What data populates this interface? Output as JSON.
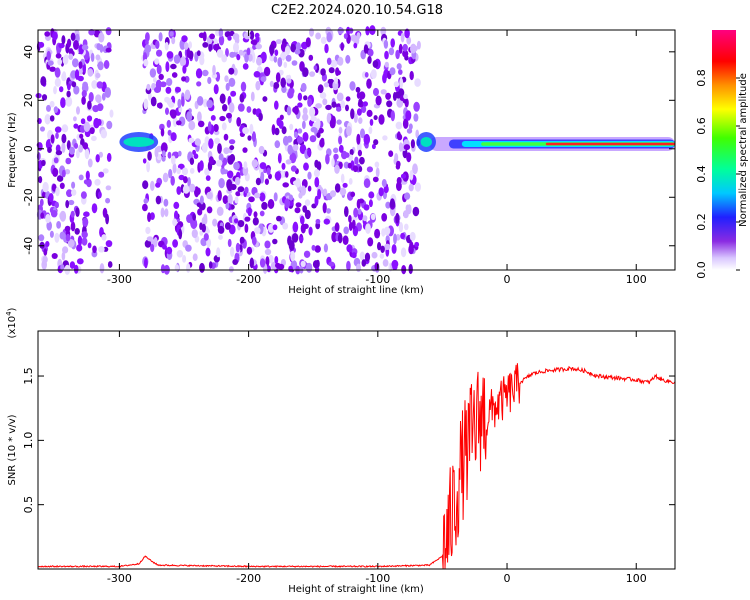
{
  "chart_data": [
    {
      "type": "heatmap",
      "title": "C2E2.2024.020.10.54.G18",
      "xlabel": "Height of straight line (km)",
      "ylabel": "Frequency (Hz)",
      "xlim": [
        -363,
        130
      ],
      "ylim": [
        -50,
        49
      ],
      "x_ticks": [
        -300,
        -200,
        -100,
        0,
        100
      ],
      "y_ticks": [
        -40,
        -20,
        0,
        20,
        40
      ],
      "colorbar": {
        "label": "Normalized spectral amplitude",
        "range": [
          0,
          1
        ],
        "ticks": [
          "0.0",
          "0.2",
          "0.4",
          "0.6",
          "0.8"
        ]
      },
      "features": {
        "noise_region_x": [
          -363,
          -68
        ],
        "gap_x": [
          -306,
          -281
        ],
        "signal_frequency_hz": 2,
        "strong_signal_x": [
          -70,
          130
        ]
      }
    },
    {
      "type": "line",
      "xlabel": "Height of straight line (km)",
      "ylabel": "SNR (10 * v/v)",
      "y_multiplier": "(x10",
      "y_multiplier_exp": "4",
      "y_multiplier_close": ")",
      "xlim": [
        -363,
        130
      ],
      "ylim": [
        0,
        1.85
      ],
      "x_ticks": [
        -300,
        -200,
        -100,
        0,
        100
      ],
      "y_ticks": [
        "0.5",
        "1.0",
        "1.5"
      ],
      "series_color": "#ff0000",
      "x": [
        -363,
        -300,
        -285,
        -280,
        -275,
        -270,
        -200,
        -100,
        -60,
        -50,
        -45,
        -40,
        -35,
        -30,
        -25,
        -20,
        -15,
        -10,
        -5,
        0,
        10,
        20,
        30,
        40,
        50,
        60,
        70,
        80,
        90,
        100,
        105,
        110,
        115,
        120,
        130
      ],
      "y": [
        0.02,
        0.02,
        0.04,
        0.1,
        0.06,
        0.03,
        0.02,
        0.02,
        0.03,
        0.1,
        0.3,
        0.55,
        0.8,
        0.95,
        1.1,
        1.2,
        1.2,
        1.25,
        1.3,
        1.35,
        1.45,
        1.52,
        1.54,
        1.55,
        1.56,
        1.54,
        1.5,
        1.49,
        1.48,
        1.47,
        1.46,
        1.45,
        1.5,
        1.47,
        1.45
      ]
    }
  ]
}
